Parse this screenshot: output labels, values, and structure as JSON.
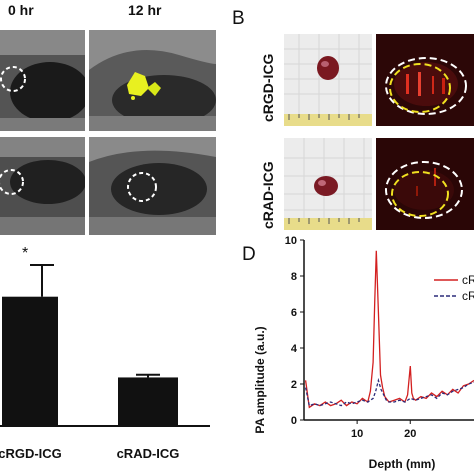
{
  "panel_a": {
    "col_labels": [
      "0 hr",
      "12 hr"
    ]
  },
  "panel_b": {
    "letter": "B",
    "rows": [
      {
        "label": "cRGD-ICG"
      },
      {
        "label": "cRAD-ICG"
      }
    ]
  },
  "panel_c": {
    "significance_mark": "*"
  },
  "panel_d": {
    "letter": "D",
    "legend_items": [
      "cR",
      "cR"
    ]
  },
  "chart_data": [
    {
      "type": "bar",
      "categories": [
        "cRGD-ICG",
        "cRAD-ICG"
      ],
      "values": [
        2.45,
        0.92
      ],
      "errors": [
        0.6,
        0.05
      ],
      "colors": [
        "#111111",
        "#111111"
      ],
      "ylim": [
        0,
        3.6
      ],
      "annotation": "*"
    },
    {
      "type": "line",
      "xlabel": "Depth (mm)",
      "ylabel": "PA amplitude (a.u.)",
      "xlim": [
        0,
        32
      ],
      "ylim": [
        0,
        10
      ],
      "xticks": [
        10,
        20
      ],
      "yticks": [
        0,
        2,
        4,
        6,
        8,
        10
      ],
      "series": [
        {
          "name": "cR",
          "color": "#d32020",
          "style": "solid",
          "x": [
            0.3,
            1,
            2,
            3,
            4,
            5,
            6,
            7,
            8,
            9,
            10,
            11,
            12,
            12.5,
            13,
            13.3,
            13.6,
            14,
            14.4,
            14.8,
            15.2,
            16,
            17,
            18,
            19,
            19.5,
            20,
            20.3,
            20.6,
            21,
            22,
            23,
            24,
            25,
            26,
            27,
            28,
            29,
            30,
            31,
            32
          ],
          "y": [
            2.2,
            0.7,
            0.9,
            0.8,
            1.0,
            0.8,
            0.9,
            1.1,
            0.8,
            1.0,
            0.9,
            1.2,
            1.0,
            1.6,
            3.2,
            6.5,
            9.4,
            6.0,
            2.5,
            1.8,
            1.3,
            1.0,
            1.1,
            1.2,
            1.0,
            1.4,
            3.0,
            1.5,
            1.2,
            1.1,
            1.3,
            1.2,
            1.5,
            1.3,
            1.6,
            1.4,
            1.7,
            1.5,
            1.9,
            2.0,
            2.2
          ]
        },
        {
          "name": "cR",
          "color": "#2b2b7a",
          "style": "dashed",
          "x": [
            0.3,
            1,
            2,
            3,
            4,
            5,
            6,
            7,
            8,
            9,
            10,
            11,
            12,
            13,
            13.5,
            14,
            14.5,
            15,
            15.5,
            16,
            17,
            18,
            19,
            20,
            21,
            22,
            23,
            24,
            25,
            26,
            27,
            28,
            29,
            30,
            31,
            32
          ],
          "y": [
            1.8,
            0.8,
            0.9,
            0.8,
            0.9,
            1.0,
            0.9,
            0.8,
            1.0,
            0.9,
            1.0,
            1.1,
            1.0,
            1.2,
            1.6,
            2.2,
            1.7,
            1.4,
            1.1,
            1.0,
            1.0,
            1.1,
            1.0,
            1.2,
            1.1,
            1.2,
            1.3,
            1.4,
            1.2,
            1.5,
            1.4,
            1.6,
            1.7,
            1.8,
            2.0,
            2.1
          ]
        }
      ]
    }
  ]
}
